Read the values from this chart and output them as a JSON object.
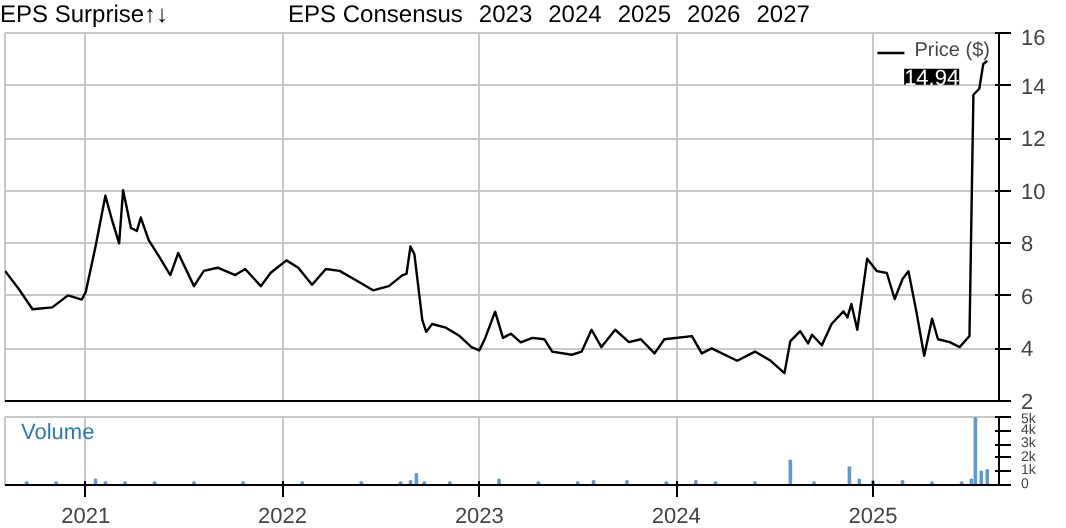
{
  "chart_data": [
    {
      "type": "line",
      "annotations": [
        "EPS Surprise↑↓",
        "EPS Consensus",
        "2023",
        "2024",
        "2025",
        "2026",
        "2027",
        {
          "text": "14.94",
          "x": 2025.58,
          "y": 14.94
        }
      ],
      "xlim": [
        2020.59,
        2025.64
      ],
      "xticks": [
        2021,
        2022,
        2023,
        2024,
        2025
      ],
      "ylim": [
        2,
        16
      ],
      "yticks": [
        2,
        4,
        6,
        8,
        10,
        12,
        14,
        16
      ],
      "grid": true,
      "legend": "top right",
      "tick_labels": "y",
      "line_style": "solid",
      "series": [
        {
          "name": "Price ($)",
          "color": "#000000",
          "x": [
            2020.59,
            2020.66,
            2020.73,
            2020.83,
            2020.91,
            2020.98,
            2021.0,
            2021.05,
            2021.1,
            2021.13,
            2021.17,
            2021.19,
            2021.23,
            2021.26,
            2021.28,
            2021.32,
            2021.37,
            2021.43,
            2021.47,
            2021.55,
            2021.6,
            2021.67,
            2021.76,
            2021.81,
            2021.89,
            2021.94,
            2022.02,
            2022.08,
            2022.15,
            2022.22,
            2022.29,
            2022.36,
            2022.46,
            2022.54,
            2022.61,
            2022.63,
            2022.65,
            2022.67,
            2022.71,
            2022.73,
            2022.76,
            2022.83,
            2022.9,
            2022.96,
            2023.0,
            2023.03,
            2023.08,
            2023.12,
            2023.16,
            2023.21,
            2023.27,
            2023.33,
            2023.37,
            2023.47,
            2023.52,
            2023.57,
            2023.62,
            2023.69,
            2023.76,
            2023.82,
            2023.89,
            2023.94,
            2024.08,
            2024.13,
            2024.18,
            2024.31,
            2024.4,
            2024.48,
            2024.55,
            2024.58,
            2024.63,
            2024.67,
            2024.69,
            2024.74,
            2024.79,
            2024.85,
            2024.87,
            2024.89,
            2024.92,
            2024.97,
            2025.02,
            2025.07,
            2025.11,
            2025.15,
            2025.18,
            2025.22,
            2025.26,
            2025.3,
            2025.33,
            2025.39,
            2025.44,
            2025.49,
            2025.51,
            2025.54,
            2025.56,
            2025.58
          ],
          "values": [
            6.95,
            6.26,
            5.49,
            5.56,
            6.02,
            5.86,
            6.14,
            7.88,
            9.81,
            8.98,
            8.0,
            10.02,
            8.58,
            8.47,
            8.98,
            8.12,
            7.53,
            6.79,
            7.63,
            6.37,
            6.95,
            7.07,
            6.79,
            7.02,
            6.37,
            6.88,
            7.35,
            7.07,
            6.42,
            7.02,
            6.95,
            6.65,
            6.21,
            6.37,
            6.79,
            6.84,
            7.88,
            7.58,
            5.09,
            4.63,
            4.93,
            4.79,
            4.47,
            4.05,
            3.93,
            4.4,
            5.4,
            4.4,
            4.56,
            4.23,
            4.4,
            4.35,
            3.88,
            3.76,
            3.88,
            4.71,
            4.05,
            4.71,
            4.24,
            4.35,
            3.81,
            4.35,
            4.47,
            3.81,
            4.0,
            3.53,
            3.88,
            3.53,
            3.06,
            4.28,
            4.66,
            4.19,
            4.52,
            4.12,
            4.94,
            5.41,
            5.18,
            5.69,
            4.71,
            7.41,
            6.94,
            6.87,
            5.88,
            6.64,
            6.94,
            5.41,
            3.72,
            5.13,
            4.35,
            4.24,
            4.05,
            4.47,
            13.65,
            13.88,
            14.82,
            14.94
          ]
        }
      ]
    },
    {
      "type": "bar",
      "title": "Volume",
      "xlim": [
        2020.59,
        2025.64
      ],
      "xticks": [
        2021,
        2022,
        2023,
        2024,
        2025
      ],
      "ylim": [
        0,
        5000
      ],
      "yticks": [
        0,
        {
          "value": 1000,
          "label": "1k"
        },
        {
          "value": 2000,
          "label": "2k"
        },
        {
          "value": 3000,
          "label": "3k"
        },
        {
          "value": 4000,
          "label": "4k"
        },
        {
          "value": 5000,
          "label": "5k"
        }
      ],
      "grid": "x",
      "series": [
        {
          "color": "#5b9bd5",
          "x": [
            2020.7,
            2020.85,
            2021.05,
            2021.1,
            2021.2,
            2021.35,
            2021.55,
            2021.8,
            2022.1,
            2022.4,
            2022.6,
            2022.65,
            2022.68,
            2022.72,
            2022.85,
            2023.1,
            2023.3,
            2023.5,
            2023.58,
            2023.75,
            2023.95,
            2024.1,
            2024.2,
            2024.4,
            2024.58,
            2024.7,
            2024.88,
            2024.93,
            2025.0,
            2025.15,
            2025.3,
            2025.45,
            2025.5,
            2025.52,
            2025.55,
            2025.58
          ],
          "values": [
            200,
            200,
            400,
            200,
            200,
            200,
            200,
            200,
            200,
            200,
            200,
            300,
            800,
            200,
            200,
            400,
            200,
            200,
            300,
            300,
            200,
            300,
            200,
            200,
            1800,
            200,
            1300,
            400,
            300,
            300,
            200,
            200,
            400,
            4900,
            1000,
            1100
          ]
        }
      ]
    }
  ]
}
